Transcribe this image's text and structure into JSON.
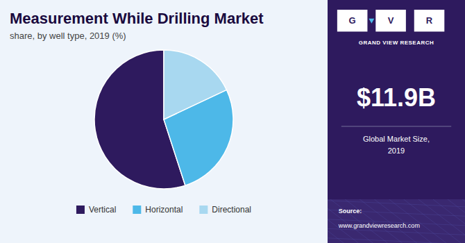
{
  "chart_data": {
    "type": "pie",
    "title": "Measurement While Drilling Market",
    "subtitle": "share, by well type, 2019 (%)",
    "categories": [
      "Vertical",
      "Horizontal",
      "Directional"
    ],
    "values": [
      55,
      27,
      18
    ],
    "colors": [
      "#2e1a5e",
      "#4db8e8",
      "#a8d8f0"
    ],
    "legend": "bottom",
    "annotations": [
      "G",
      "V",
      "R",
      "GRAND VIEW RESEARCH",
      "$11.9B",
      "Global Market Size,\n2019",
      "Source:",
      "www.grandviewresearch.com"
    ]
  }
}
